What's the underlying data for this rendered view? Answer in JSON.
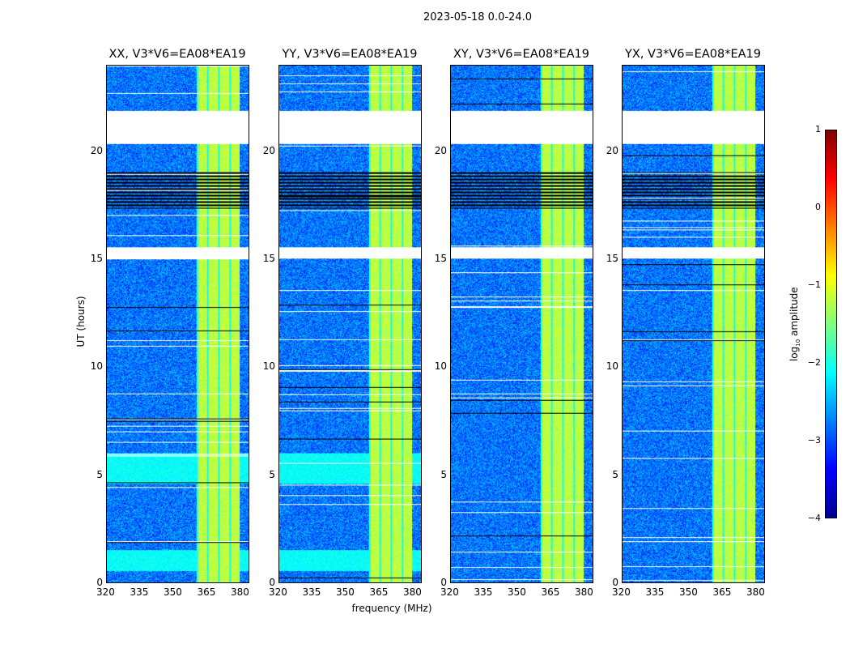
{
  "chart_data": {
    "type": "heatmap",
    "title": "2023-05-18 0.0-24.0",
    "xlabel": "frequency (MHz)",
    "ylabel": "UT (hours)",
    "xlim": [
      320,
      384
    ],
    "ylim": [
      0,
      24
    ],
    "xticks": [
      "320",
      "335",
      "350",
      "365",
      "380"
    ],
    "xtick_values": [
      320,
      335,
      350,
      365,
      380
    ],
    "yticks": [
      "0",
      "5",
      "10",
      "15",
      "20"
    ],
    "ytick_values": [
      0,
      5,
      10,
      15,
      20
    ],
    "colorbar": {
      "label_main": "log",
      "label_sub": "10",
      "label_rest": " amplitude",
      "range": [
        -4,
        1
      ],
      "ticks": [
        "1",
        "0",
        "−1",
        "−2",
        "−3",
        "−4"
      ],
      "tick_values": [
        1,
        0,
        -1,
        -2,
        -3,
        -4
      ]
    },
    "panels": [
      {
        "title": "XX, V3*V6=EA08*EA19"
      },
      {
        "title": "YY, V3*V6=EA08*EA19"
      },
      {
        "title": "XY, V3*V6=EA08*EA19"
      },
      {
        "title": "YX, V3*V6=EA08*EA19"
      }
    ],
    "rfi_band_mhz": [
      360.4,
      380
    ],
    "band_level": -1.2,
    "background_level": -2.8,
    "blank_ut_ranges": [
      [
        20.4,
        21.9
      ],
      [
        15.05,
        15.6
      ]
    ],
    "flagged_ut_ranges": [
      [
        17.4,
        19.1
      ]
    ],
    "bright_ut_ranges_parallel": [
      [
        4.6,
        6.0
      ],
      [
        0.55,
        1.5
      ]
    ]
  }
}
